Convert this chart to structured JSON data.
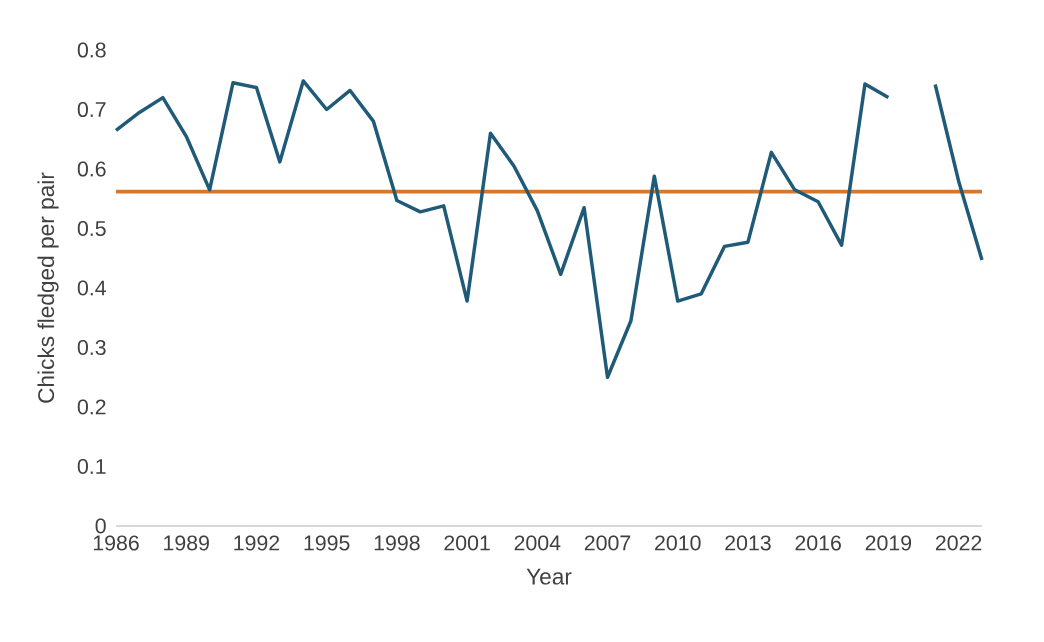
{
  "chart_data": {
    "type": "line",
    "xlabel": "Year",
    "ylabel": "Chicks fledged per pair",
    "categories": [
      "1986",
      null,
      null,
      "1989",
      null,
      null,
      "1992",
      null,
      null,
      "1995",
      null,
      null,
      "1998",
      null,
      null,
      "2001",
      null,
      null,
      "2004",
      null,
      null,
      "2007",
      null,
      null,
      "2010",
      null,
      null,
      "2013",
      null,
      null,
      "2016",
      null,
      null,
      "2019",
      null,
      null,
      "2022",
      null
    ],
    "series": [
      {
        "color": "#1f5a78",
        "values": [
          0.665,
          0.695,
          0.72,
          0.655,
          0.565,
          0.745,
          0.737,
          0.612,
          0.748,
          0.7,
          0.732,
          0.68,
          0.547,
          0.528,
          0.538,
          0.378,
          0.66,
          0.605,
          0.53,
          0.423,
          0.535,
          0.25,
          0.345,
          0.588,
          0.378,
          0.39,
          0.47,
          0.477,
          0.628,
          0.565,
          0.545,
          0.472,
          0.743,
          0.72,
          null,
          0.742,
          0.58,
          0.447
        ]
      }
    ],
    "ylim": [
      0,
      0.8
    ],
    "yticks": [
      0,
      0.1,
      0.2,
      0.3,
      0.4,
      0.5,
      0.6,
      0.7,
      0.8
    ],
    "ref_lines": [
      {
        "axis": "y",
        "value": 0.562,
        "color": "#d4782f"
      }
    ],
    "grid": false,
    "marker": "none",
    "line_style": "solid"
  }
}
